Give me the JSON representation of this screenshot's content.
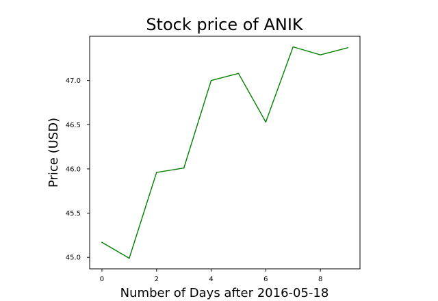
{
  "chart_data": {
    "type": "line",
    "title": "Stock price of ANIK",
    "xlabel": "Number of Days after 2016-05-18",
    "ylabel": "Price (USD)",
    "x": [
      0,
      1,
      2,
      3,
      4,
      5,
      6,
      7,
      8,
      9
    ],
    "series": [
      {
        "values": [
          45.17,
          44.99,
          45.96,
          46.01,
          47.0,
          47.08,
          46.53,
          47.38,
          47.29,
          47.37
        ],
        "color": "#008000"
      }
    ],
    "xlim": [
      -0.45,
      9.45
    ],
    "ylim": [
      44.87,
      47.5
    ],
    "xticks": [
      0,
      2,
      4,
      6,
      8
    ],
    "xtick_labels": [
      "0",
      "2",
      "4",
      "6",
      "8"
    ],
    "yticks": [
      45.0,
      45.5,
      46.0,
      46.5,
      47.0
    ],
    "ytick_labels": [
      "45.0",
      "45.5",
      "46.0",
      "46.5",
      "47.0"
    ],
    "grid": false,
    "legend": false
  }
}
